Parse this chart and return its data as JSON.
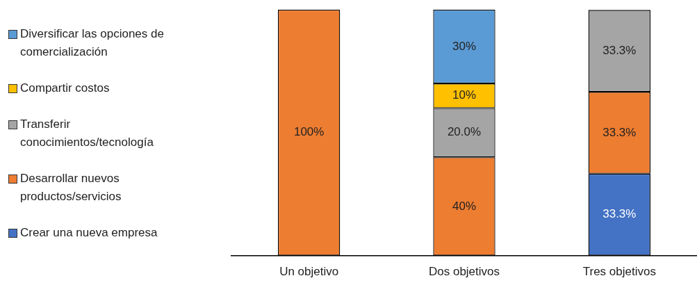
{
  "chart_data": {
    "type": "bar",
    "stacked": true,
    "categories": [
      "Un objetivo",
      "Dos objetivos",
      "Tres objetivos"
    ],
    "ylim": [
      0,
      100
    ],
    "legend": "left",
    "series": [
      {
        "name": "Crear una nueva empresa",
        "color": "#4472c4",
        "values": [
          null,
          null,
          33.3
        ],
        "value_labels": [
          null,
          null,
          "33.3%"
        ]
      },
      {
        "name": "Desarrollar nuevos productos/servicios",
        "color": "#ed7d31",
        "values": [
          100,
          40,
          33.3
        ],
        "value_labels": [
          "100%",
          "40%",
          "33.3%"
        ]
      },
      {
        "name": "Transferir conocimientos/tecnología",
        "color": "#a5a5a5",
        "values": [
          null,
          20,
          33.3
        ],
        "value_labels": [
          null,
          "20.0%",
          "33.3%"
        ]
      },
      {
        "name": "Compartir costos",
        "color": "#ffc000",
        "values": [
          null,
          10,
          null
        ],
        "value_labels": [
          null,
          "10%",
          null
        ]
      },
      {
        "name": "Diversificar las opciones de comercialización",
        "color": "#5b9bd5",
        "values": [
          null,
          30,
          null
        ],
        "value_labels": [
          null,
          "30%",
          null
        ]
      }
    ]
  }
}
